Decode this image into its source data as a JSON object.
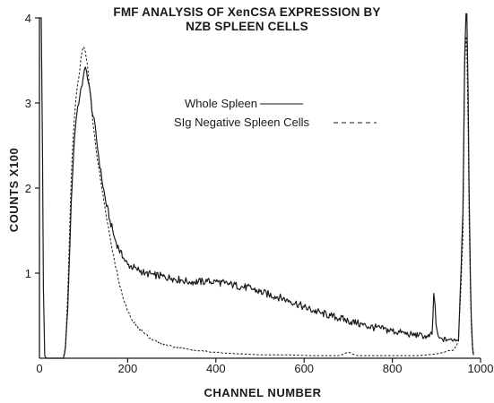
{
  "chart_data": {
    "type": "line",
    "title_line1": "FMF ANALYSIS OF XenCSA EXPRESSION BY",
    "title_line2": "NZB SPLEEN CELLS",
    "xlabel": "CHANNEL NUMBER",
    "ylabel": "COUNTS X100",
    "xlim": [
      0,
      1000
    ],
    "ylim": [
      0,
      4
    ],
    "x_ticks": [
      0,
      200,
      400,
      600,
      800,
      1000
    ],
    "y_ticks": [
      1,
      2,
      3,
      4
    ],
    "legend_placement": "center",
    "series": [
      {
        "name": "Whole Spleen",
        "style": "solid",
        "x": [
          0,
          5,
          10,
          15,
          20,
          25,
          30,
          35,
          40,
          45,
          50,
          55,
          60,
          65,
          70,
          75,
          80,
          85,
          90,
          95,
          100,
          105,
          110,
          115,
          120,
          125,
          130,
          135,
          140,
          150,
          160,
          170,
          180,
          190,
          200,
          220,
          240,
          260,
          280,
          300,
          320,
          340,
          360,
          380,
          400,
          420,
          440,
          460,
          480,
          500,
          520,
          540,
          560,
          580,
          600,
          620,
          640,
          660,
          680,
          700,
          720,
          740,
          760,
          780,
          800,
          820,
          840,
          860,
          880,
          890,
          895,
          900,
          905,
          910,
          930,
          950,
          960,
          965,
          970,
          975,
          980,
          985
        ],
        "values": [
          4.0,
          4.0,
          0.05,
          0.0,
          0.0,
          0.0,
          0.0,
          0.0,
          0.0,
          0.0,
          0.0,
          0.0,
          0.15,
          0.7,
          1.5,
          2.2,
          2.65,
          2.9,
          3.05,
          3.15,
          3.35,
          3.4,
          3.3,
          3.1,
          2.9,
          2.75,
          2.55,
          2.35,
          2.15,
          1.85,
          1.62,
          1.42,
          1.28,
          1.18,
          1.1,
          1.05,
          1.0,
          0.98,
          0.96,
          0.94,
          0.92,
          0.9,
          0.9,
          0.9,
          0.9,
          0.88,
          0.86,
          0.84,
          0.82,
          0.78,
          0.75,
          0.72,
          0.69,
          0.65,
          0.6,
          0.56,
          0.53,
          0.5,
          0.47,
          0.44,
          0.41,
          0.38,
          0.36,
          0.34,
          0.32,
          0.3,
          0.28,
          0.27,
          0.25,
          0.28,
          0.85,
          0.3,
          0.24,
          0.22,
          0.22,
          0.22,
          1.7,
          4.05,
          4.05,
          1.5,
          0.2,
          0.0
        ]
      },
      {
        "name": "SIg Negative Spleen Cells",
        "style": "dashed",
        "x": [
          50,
          55,
          60,
          65,
          70,
          75,
          80,
          85,
          90,
          95,
          100,
          105,
          110,
          115,
          120,
          125,
          130,
          140,
          150,
          160,
          170,
          180,
          190,
          200,
          210,
          220,
          240,
          260,
          280,
          300,
          340,
          380,
          420,
          460,
          500,
          560,
          620,
          680,
          700,
          720,
          760,
          800,
          860,
          900,
          940,
          950,
          960,
          965,
          970,
          975,
          980,
          985
        ],
        "values": [
          0.0,
          0.0,
          0.2,
          0.9,
          1.8,
          2.5,
          2.9,
          3.15,
          3.35,
          3.55,
          3.7,
          3.6,
          3.4,
          3.1,
          2.85,
          2.6,
          2.4,
          2.05,
          1.72,
          1.42,
          1.15,
          0.9,
          0.7,
          0.55,
          0.45,
          0.38,
          0.28,
          0.21,
          0.17,
          0.14,
          0.1,
          0.08,
          0.06,
          0.05,
          0.04,
          0.04,
          0.03,
          0.03,
          0.07,
          0.03,
          0.03,
          0.03,
          0.03,
          0.05,
          0.1,
          0.2,
          1.4,
          3.9,
          3.6,
          1.2,
          0.15,
          0.0
        ]
      }
    ]
  }
}
